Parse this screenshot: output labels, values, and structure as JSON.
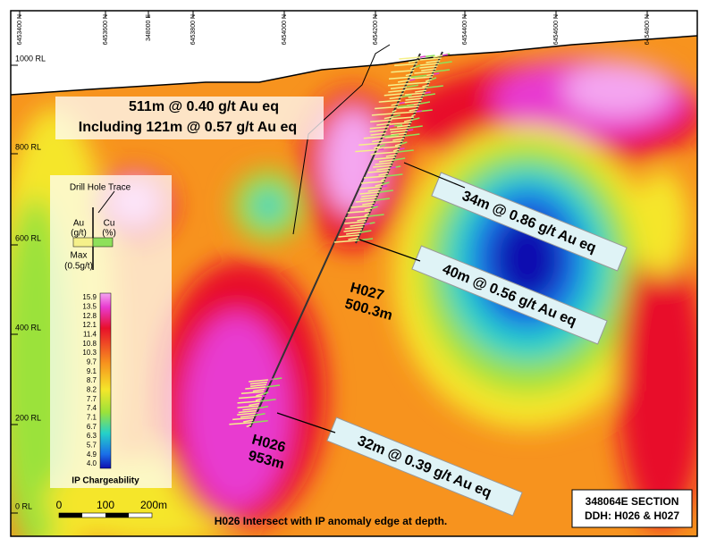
{
  "top_axis": [
    "6453400 N",
    "6453600 N",
    "348000 E",
    "6453800 N",
    "6454000 N",
    "6454200 N",
    "6454400 N",
    "6454600 N",
    "6454800 N"
  ],
  "rl_labels": [
    "1000 RL",
    "800 RL",
    "600 RL",
    "400 RL",
    "200 RL",
    "0 RL"
  ],
  "headline": {
    "line1": "511m @ 0.40 g/t Au eq",
    "line2": "Including 121m @ 0.57 g/t Au eq"
  },
  "callouts": [
    "34m @ 0.86 g/t Au eq",
    "40m @ 0.56 g/t Au eq",
    "32m @ 0.39 g/t Au eq"
  ],
  "holes": [
    {
      "name": "H027",
      "depth": "500.3m"
    },
    {
      "name": "H026",
      "depth": "953m"
    }
  ],
  "legend": {
    "title": "Drill Hole Trace",
    "au": "Au",
    "au_unit": "(g/t)",
    "cu": "Cu",
    "cu_unit": "(%)",
    "max": "Max",
    "max_value": "(0.5g/t)",
    "scale": [
      "15.9",
      "13.5",
      "12.8",
      "12.1",
      "11.4",
      "10.8",
      "10.3",
      "9.7",
      "9.1",
      "8.7",
      "8.2",
      "7.7",
      "7.4",
      "7.1",
      "6.7",
      "6.3",
      "5.7",
      "4.9",
      "4.0"
    ],
    "scale_title": "IP Chargeability"
  },
  "scale_bar": [
    "0",
    "100",
    "200m"
  ],
  "footer": "H026 Intersect with IP anomaly edge at depth.",
  "section_box": {
    "line1": "348064E SECTION",
    "line2": "DDH: H026 & H027"
  }
}
